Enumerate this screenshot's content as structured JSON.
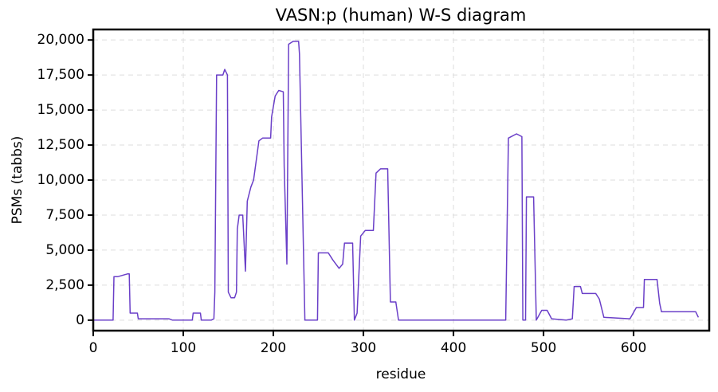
{
  "chart_data": {
    "type": "line",
    "title": "VASN:p (human) W-S diagram",
    "x_label": "residue",
    "y_label": "PSMs (tabbs)",
    "xlim": [
      0,
      684
    ],
    "ylim": [
      -750,
      20750
    ],
    "xticks": [
      0,
      100,
      200,
      300,
      400,
      500,
      600
    ],
    "yticks": [
      0,
      {
        "value": 2500,
        "label": "2,500"
      },
      {
        "value": 5000,
        "label": "5,000"
      },
      {
        "value": 7500,
        "label": "7,500"
      },
      {
        "value": 10000,
        "label": "10,000"
      },
      {
        "value": 12500,
        "label": "12,500"
      },
      {
        "value": 15000,
        "label": "15,000"
      },
      {
        "value": 17500,
        "label": "17,500"
      },
      {
        "value": 20000,
        "label": "20,000"
      }
    ],
    "grid": true,
    "x": [
      0,
      22,
      23,
      27,
      38,
      40,
      41,
      49,
      50,
      84,
      88,
      110,
      111,
      119,
      120,
      131,
      134,
      135,
      137,
      144,
      146,
      149,
      150,
      153,
      157,
      159,
      160,
      162,
      166,
      169,
      171,
      175,
      178,
      184,
      188,
      197,
      198,
      202,
      206,
      211,
      212,
      215,
      217,
      222,
      228,
      229,
      235,
      249,
      250,
      261,
      266,
      273,
      277,
      279,
      288,
      290,
      293,
      297,
      302,
      311,
      314,
      319,
      327,
      330,
      336,
      339,
      458,
      461,
      470,
      476,
      477,
      480,
      481,
      489,
      492,
      498,
      504,
      509,
      525,
      532,
      534,
      541,
      543,
      558,
      562,
      567,
      596,
      603,
      611,
      612,
      626,
      629,
      631,
      669,
      672
    ],
    "series": [
      {
        "name": "PSMs",
        "color": "#6a3fc8",
        "values": [
          0,
          0,
          3100,
          3100,
          3300,
          3300,
          500,
          500,
          100,
          100,
          0,
          0,
          500,
          500,
          0,
          0,
          100,
          2000,
          17500,
          17500,
          17900,
          17500,
          2000,
          1600,
          1600,
          2000,
          6500,
          7500,
          7500,
          3500,
          8500,
          9500,
          10000,
          12800,
          13000,
          13000,
          14500,
          16000,
          16400,
          16300,
          11000,
          4000,
          19700,
          19900,
          19900,
          19000,
          0,
          0,
          4800,
          4800,
          4300,
          3700,
          4000,
          5500,
          5500,
          0,
          500,
          6000,
          6400,
          6400,
          10500,
          10800,
          10800,
          1300,
          1300,
          0,
          0,
          13000,
          13300,
          13100,
          0,
          0,
          8800,
          8800,
          0,
          700,
          700,
          100,
          0,
          100,
          2400,
          2400,
          1900,
          1900,
          1500,
          200,
          100,
          900,
          900,
          2900,
          2900,
          1200,
          600,
          600,
          200
        ]
      }
    ]
  }
}
